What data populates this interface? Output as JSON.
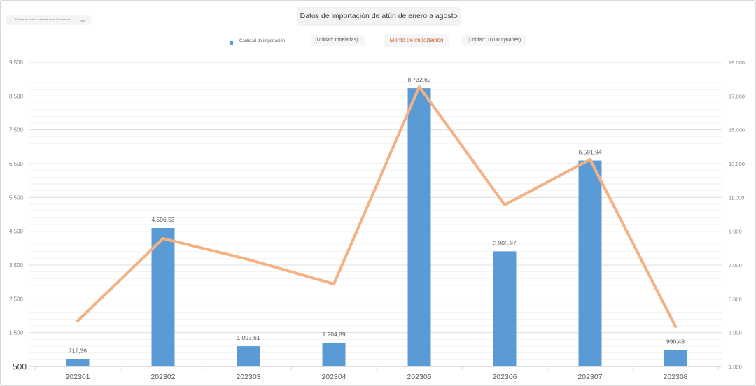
{
  "source": {
    "text": "Fuente de datos: Administración General de l",
    "tail": "ción"
  },
  "chart_data": {
    "type": "bar",
    "title": "Datos de importación de atún de enero a agosto",
    "categories": [
      "202301",
      "202302",
      "202303",
      "202304",
      "202305",
      "202306",
      "202307",
      "202308"
    ],
    "series": [
      {
        "name": "Cantidad de importación",
        "unit": "(Unidad: toneladas) -",
        "type": "bar",
        "axis": "left",
        "color": "#5b9bd5",
        "values": [
          717.36,
          4596.53,
          1097.61,
          1204.89,
          8732.6,
          3905.97,
          6591.94,
          990.48
        ],
        "data_labels": [
          "717,36",
          "4.596,53",
          "1.097,61",
          "1.204,89",
          "8.732,60",
          "3.905,97",
          "6.591,94",
          "990,48"
        ]
      },
      {
        "name": "Monto de importación",
        "unit": "(Unidad: 10.000 yuanes)",
        "type": "line",
        "axis": "right",
        "color": "#f4b183",
        "label_color": "#c0633a",
        "values": [
          3690,
          8570,
          7330,
          5880,
          17550,
          10560,
          13250,
          3360
        ]
      }
    ],
    "y_left": {
      "range": [
        500,
        9500
      ],
      "ticks": [
        500,
        1500,
        2500,
        3500,
        4500,
        5500,
        6500,
        7500,
        8500,
        9500
      ],
      "tick_labels": [
        "500",
        "1.500",
        "2.500",
        "3.500",
        "4.500",
        "5.500",
        "6.500",
        "7.500",
        "8.500",
        "9.500"
      ]
    },
    "y_right": {
      "range": [
        1000,
        19000
      ],
      "ticks": [
        1000,
        3000,
        5000,
        7000,
        9000,
        11000,
        13000,
        15000,
        17000,
        19000
      ],
      "tick_labels": [
        "1.000",
        "3.000",
        "5.000",
        "7.000",
        "9.000",
        "11.000",
        "13.000",
        "15.000",
        "17.000",
        "19.000"
      ]
    },
    "grid": true,
    "legend": "top-center"
  }
}
